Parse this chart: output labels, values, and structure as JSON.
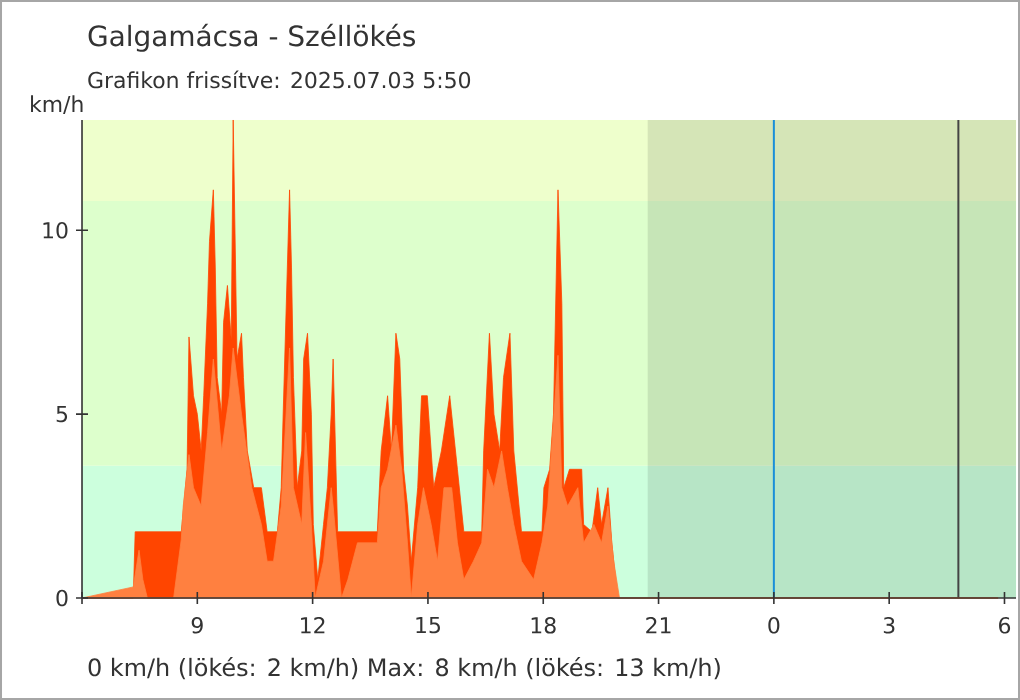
{
  "chart_data": {
    "type": "area",
    "title": "Galgamácsa - Széllökés",
    "subtitle": "Grafikon frissítve: 2025.07.03 5:50",
    "ylabel": "km/h",
    "annotations": [
      "0 km/h  (lökés: 2 km/h)  Max: 8 km/h  (lökés: 13 km/h)"
    ],
    "xlim": [
      "2025-07-02T06:00",
      "2025-07-03T06:18"
    ],
    "ylim": [
      0,
      13
    ],
    "xticks": [
      {
        "value": "2025-07-02T06:00",
        "label": null
      },
      {
        "value": "2025-07-02T09:00",
        "label": "9"
      },
      {
        "value": "2025-07-02T12:00",
        "label": "12"
      },
      {
        "value": "2025-07-02T15:00",
        "label": "15"
      },
      {
        "value": "2025-07-02T18:00",
        "label": "18"
      },
      {
        "value": "2025-07-02T21:00",
        "label": "21"
      },
      {
        "value": "2025-07-03T00:00",
        "label": "0"
      },
      {
        "value": "2025-07-03T03:00",
        "label": "3"
      },
      {
        "value": "2025-07-03T06:00",
        "label": "6"
      }
    ],
    "yticks": [
      0,
      5,
      10
    ],
    "bands": [
      {
        "axis": "y",
        "from": 0,
        "to": 3.6,
        "color": "#ccffdd"
      },
      {
        "axis": "y",
        "from": 3.6,
        "to": 10.8,
        "color": "#ddffcc"
      },
      {
        "axis": "y",
        "from": 10.8,
        "to": 13,
        "color": "#eeffcc"
      },
      {
        "axis": "x",
        "from": "2025-07-02T20:43",
        "to": "2025-07-03T06:18"
      }
    ],
    "ref_lines": [
      {
        "axis": "x",
        "value": "2025-07-03T00:00",
        "color": "#1a8fd8"
      },
      {
        "axis": "x",
        "value": "2025-07-03T04:48",
        "color": "#444444"
      }
    ],
    "series": [
      {
        "color": "#ff4500",
        "x": [
          "2025-07-02T06:00",
          "2025-07-02T07:20",
          "2025-07-02T07:23",
          "2025-07-02T08:35",
          "2025-07-02T08:44",
          "2025-07-02T08:47",
          "2025-07-02T08:54",
          "2025-07-02T09:00",
          "2025-07-02T09:06",
          "2025-07-02T09:10",
          "2025-07-02T09:16",
          "2025-07-02T09:19",
          "2025-07-02T09:25",
          "2025-07-02T09:28",
          "2025-07-02T09:31",
          "2025-07-02T09:38",
          "2025-07-02T09:41",
          "2025-07-02T09:47",
          "2025-07-02T09:53",
          "2025-07-02T09:56",
          "2025-07-02T10:02",
          "2025-07-02T10:09",
          "2025-07-02T10:12",
          "2025-07-02T10:18",
          "2025-07-02T10:28",
          "2025-07-02T10:40",
          "2025-07-02T10:49",
          "2025-07-02T11:05",
          "2025-07-02T11:11",
          "2025-07-02T11:14",
          "2025-07-02T11:24",
          "2025-07-02T11:27",
          "2025-07-02T11:30",
          "2025-07-02T11:36",
          "2025-07-02T11:43",
          "2025-07-02T11:46",
          "2025-07-02T11:52",
          "2025-07-02T11:58",
          "2025-07-02T12:01",
          "2025-07-02T12:08",
          "2025-07-02T12:17",
          "2025-07-02T12:23",
          "2025-07-02T12:29",
          "2025-07-02T12:32",
          "2025-07-02T12:39",
          "2025-07-02T13:41",
          "2025-07-02T13:47",
          "2025-07-02T13:57",
          "2025-07-02T14:03",
          "2025-07-02T14:10",
          "2025-07-02T14:16",
          "2025-07-02T14:22",
          "2025-07-02T14:28",
          "2025-07-02T14:34",
          "2025-07-02T14:44",
          "2025-07-02T14:50",
          "2025-07-02T14:59",
          "2025-07-02T15:09",
          "2025-07-02T15:21",
          "2025-07-02T15:34",
          "2025-07-02T15:46",
          "2025-07-02T15:56",
          "2025-07-02T16:24",
          "2025-07-02T16:27",
          "2025-07-02T16:36",
          "2025-07-02T16:43",
          "2025-07-02T16:52",
          "2025-07-02T16:58",
          "2025-07-02T17:08",
          "2025-07-02T17:14",
          "2025-07-02T17:26",
          "2025-07-02T17:58",
          "2025-07-02T18:01",
          "2025-07-02T18:10",
          "2025-07-02T18:16",
          "2025-07-02T18:23",
          "2025-07-02T18:29",
          "2025-07-02T18:32",
          "2025-07-02T18:41",
          "2025-07-02T19:00",
          "2025-07-02T19:03",
          "2025-07-02T19:16",
          "2025-07-02T19:25",
          "2025-07-02T19:31",
          "2025-07-02T19:41",
          "2025-07-02T19:47",
          "2025-07-02T19:50",
          "2025-07-02T19:56",
          "2025-07-03T05:50"
        ],
        "values": [
          0,
          0,
          1.8,
          1.8,
          3.5,
          7.1,
          5.5,
          5,
          4,
          5.5,
          8,
          9.7,
          11.1,
          9,
          6,
          5,
          7.5,
          8.5,
          7,
          13,
          6.5,
          7.2,
          6,
          4,
          3,
          3,
          1.8,
          1.8,
          3,
          5,
          11.1,
          9,
          6,
          3,
          4,
          6.5,
          7.2,
          5,
          2,
          0.5,
          2,
          3,
          5,
          6.5,
          1.8,
          1.8,
          4,
          5.5,
          4,
          7.2,
          6.5,
          3.5,
          2.5,
          1,
          3,
          5.5,
          5.5,
          3,
          4,
          5.5,
          3.5,
          1.8,
          1.8,
          4,
          7.2,
          5,
          4,
          6,
          7.2,
          4,
          1.8,
          1.8,
          3,
          3.5,
          5,
          11.1,
          8,
          3,
          3.5,
          3.5,
          2,
          1.8,
          3,
          2,
          3,
          1.5,
          1,
          0,
          0
        ]
      },
      {
        "color": "#ff8040",
        "x": [
          "2025-07-02T06:00",
          "2025-07-02T07:20",
          "2025-07-02T07:29",
          "2025-07-02T07:35",
          "2025-07-02T07:42",
          "2025-07-02T08:23",
          "2025-07-02T08:35",
          "2025-07-02T08:38",
          "2025-07-02T08:47",
          "2025-07-02T08:54",
          "2025-07-02T09:06",
          "2025-07-02T09:16",
          "2025-07-02T09:25",
          "2025-07-02T09:38",
          "2025-07-02T09:50",
          "2025-07-02T09:56",
          "2025-07-02T10:09",
          "2025-07-02T10:25",
          "2025-07-02T10:40",
          "2025-07-02T10:49",
          "2025-07-02T10:59",
          "2025-07-02T11:11",
          "2025-07-02T11:24",
          "2025-07-02T11:30",
          "2025-07-02T11:43",
          "2025-07-02T11:49",
          "2025-07-02T11:58",
          "2025-07-02T12:04",
          "2025-07-02T12:17",
          "2025-07-02T12:29",
          "2025-07-02T12:32",
          "2025-07-02T12:45",
          "2025-07-02T12:55",
          "2025-07-02T13:10",
          "2025-07-02T13:41",
          "2025-07-02T13:47",
          "2025-07-02T13:57",
          "2025-07-02T14:10",
          "2025-07-02T14:19",
          "2025-07-02T14:28",
          "2025-07-02T14:34",
          "2025-07-02T14:44",
          "2025-07-02T14:53",
          "2025-07-02T15:05",
          "2025-07-02T15:15",
          "2025-07-02T15:25",
          "2025-07-02T15:37",
          "2025-07-02T15:46",
          "2025-07-02T15:56",
          "2025-07-02T16:11",
          "2025-07-02T16:24",
          "2025-07-02T16:33",
          "2025-07-02T16:43",
          "2025-07-02T16:55",
          "2025-07-02T17:04",
          "2025-07-02T17:14",
          "2025-07-02T17:26",
          "2025-07-02T17:45",
          "2025-07-02T17:58",
          "2025-07-02T18:07",
          "2025-07-02T18:23",
          "2025-07-02T18:29",
          "2025-07-02T18:38",
          "2025-07-02T18:54",
          "2025-07-02T19:03",
          "2025-07-02T19:19",
          "2025-07-02T19:31",
          "2025-07-02T19:41",
          "2025-07-02T19:50",
          "2025-07-02T19:59",
          "2025-07-03T05:50"
        ],
        "values": [
          0,
          0.3,
          1.3,
          0.5,
          0,
          0,
          1.6,
          2.5,
          3.9,
          3,
          2.5,
          4.5,
          6.5,
          4,
          5.5,
          6.8,
          5,
          3,
          2,
          1,
          1,
          2.5,
          6.8,
          3,
          2,
          4.5,
          2,
          0,
          1,
          3,
          2.5,
          0,
          0.5,
          1.5,
          1.5,
          3,
          3.5,
          4.7,
          3.5,
          1.5,
          0,
          2,
          3,
          2,
          1,
          3,
          3,
          1.5,
          0.5,
          1,
          1.5,
          3.5,
          3,
          4,
          3,
          2,
          1,
          0.5,
          1.5,
          2.5,
          6.6,
          3,
          2.5,
          3,
          1.5,
          2,
          1.5,
          2.5,
          1,
          0,
          0
        ]
      }
    ]
  }
}
